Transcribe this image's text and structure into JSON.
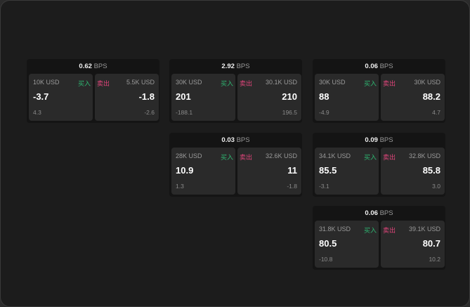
{
  "unit": "BPS",
  "buy_label": "买入",
  "sell_label": "卖出",
  "colors": {
    "buy": "#2eb872",
    "sell": "#e0457b"
  },
  "cards": [
    {
      "bps": "0.62",
      "buy": {
        "qty": "10K USD",
        "price": "-3.7",
        "change": "4.3"
      },
      "sell": {
        "qty": "5.5K USD",
        "price": "-1.8",
        "change": "-2.6"
      }
    },
    {
      "bps": "2.92",
      "buy": {
        "qty": "30K USD",
        "price": "201",
        "change": "-188.1"
      },
      "sell": {
        "qty": "30.1K USD",
        "price": "210",
        "change": "196.5"
      }
    },
    {
      "bps": "0.06",
      "buy": {
        "qty": "30K USD",
        "price": "88",
        "change": "-4.9"
      },
      "sell": {
        "qty": "30K USD",
        "price": "88.2",
        "change": "4.7"
      }
    },
    {
      "bps": "0.03",
      "buy": {
        "qty": "28K USD",
        "price": "10.9",
        "change": "1.3"
      },
      "sell": {
        "qty": "32.6K USD",
        "price": "11",
        "change": "-1.8"
      }
    },
    {
      "bps": "0.09",
      "buy": {
        "qty": "34.1K USD",
        "price": "85.5",
        "change": "-3.1"
      },
      "sell": {
        "qty": "32.8K USD",
        "price": "85.8",
        "change": "3.0"
      }
    },
    {
      "bps": "0.06",
      "buy": {
        "qty": "31.8K USD",
        "price": "80.5",
        "change": "-10.8"
      },
      "sell": {
        "qty": "39.1K USD",
        "price": "80.7",
        "change": "10.2"
      }
    }
  ]
}
